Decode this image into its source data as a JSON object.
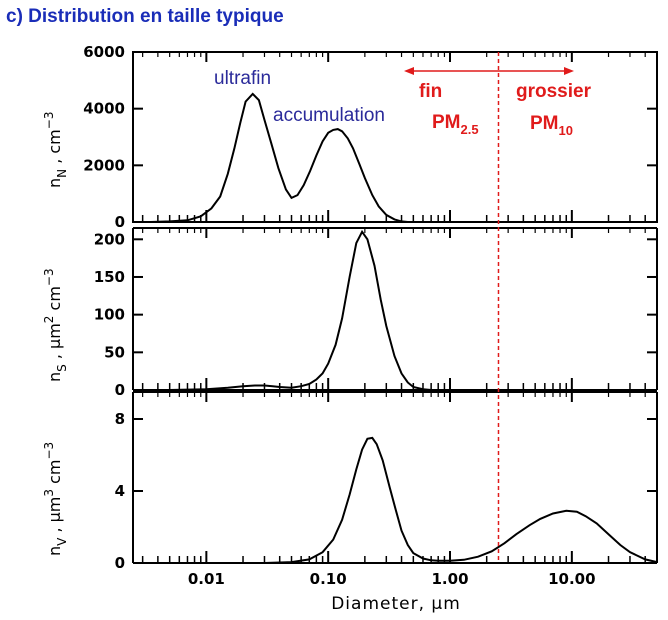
{
  "title": "c) Distribution en taille typique",
  "chart_data": {
    "type": "line",
    "x_scale": "log",
    "xlim": [
      0.0025,
      50
    ],
    "xlabel": "Diameter,  µm",
    "x_ticks": [
      {
        "value": 0.01,
        "label": "0.01"
      },
      {
        "value": 0.1,
        "label": "0.10"
      },
      {
        "value": 1,
        "label": "1.00"
      },
      {
        "value": 10,
        "label": "10.00"
      }
    ],
    "cutoff_diameter": 2.5,
    "panels": [
      {
        "id": "number",
        "ylabel_main": "n",
        "ylabel_sub": "N",
        "ylabel_rest": " ,  cm",
        "ylabel_exp": "−3",
        "ylim": [
          0,
          6000
        ],
        "y_ticks": [
          0,
          2000,
          4000,
          6000
        ],
        "series": [
          {
            "x": [
              0.0035,
              0.005,
              0.007,
              0.009,
              0.011,
              0.013,
              0.015,
              0.017,
              0.019,
              0.021,
              0.024,
              0.027,
              0.03,
              0.034,
              0.039,
              0.045,
              0.05,
              0.056,
              0.063,
              0.071,
              0.08,
              0.09,
              0.1,
              0.11,
              0.12,
              0.13,
              0.145,
              0.16,
              0.18,
              0.2,
              0.23,
              0.26,
              0.3,
              0.35,
              0.4,
              0.45
            ],
            "y": [
              0,
              20,
              60,
              200,
              480,
              900,
              1700,
              2600,
              3500,
              4250,
              4520,
              4300,
              3600,
              2800,
              1900,
              1150,
              850,
              950,
              1300,
              1800,
              2350,
              2850,
              3150,
              3250,
              3280,
              3200,
              2950,
              2600,
              2050,
              1550,
              950,
              550,
              250,
              90,
              20,
              0
            ]
          }
        ]
      },
      {
        "id": "surface",
        "ylabel_main": "n",
        "ylabel_sub": "S",
        "ylabel_rest": " ,  µm",
        "ylabel_exp": "2",
        "ylabel_tail": " cm",
        "ylabel_tail_exp": "−3",
        "ylim": [
          0,
          215
        ],
        "y_ticks": [
          0,
          50,
          100,
          150,
          200
        ],
        "series": [
          {
            "x": [
              0.005,
              0.01,
              0.015,
              0.02,
              0.025,
              0.03,
              0.035,
              0.04,
              0.05,
              0.06,
              0.07,
              0.08,
              0.09,
              0.1,
              0.115,
              0.13,
              0.15,
              0.17,
              0.19,
              0.21,
              0.24,
              0.27,
              0.3,
              0.35,
              0.4,
              0.45,
              0.5,
              0.6,
              0.7
            ],
            "y": [
              0,
              1,
              3,
              5,
              6,
              6,
              5,
              4,
              3,
              5,
              8,
              14,
              22,
              35,
              60,
              95,
              150,
              195,
              210,
              200,
              165,
              120,
              85,
              45,
              22,
              10,
              4,
              1,
              0
            ]
          }
        ]
      },
      {
        "id": "volume",
        "ylabel_main": "n",
        "ylabel_sub": "V",
        "ylabel_rest": " ,  µm",
        "ylabel_exp": "3",
        "ylabel_tail": " cm",
        "ylabel_tail_exp": "−3",
        "ylim": [
          0,
          9.5
        ],
        "y_ticks": [
          0,
          4,
          8
        ],
        "series": [
          {
            "x": [
              0.03,
              0.05,
              0.07,
              0.09,
              0.11,
              0.13,
              0.15,
              0.17,
              0.19,
              0.21,
              0.23,
              0.25,
              0.28,
              0.32,
              0.36,
              0.4,
              0.45,
              0.5,
              0.6,
              0.7,
              0.8,
              1.0,
              1.3,
              1.7,
              2.2,
              2.8,
              3.5,
              4.5,
              5.5,
              7,
              9,
              11,
              13,
              16,
              20,
              25,
              30,
              40,
              50
            ],
            "y": [
              0,
              0.05,
              0.2,
              0.6,
              1.3,
              2.4,
              3.8,
              5.2,
              6.3,
              6.9,
              6.95,
              6.6,
              5.7,
              4.2,
              2.9,
              1.8,
              1.0,
              0.55,
              0.25,
              0.15,
              0.12,
              0.12,
              0.18,
              0.35,
              0.65,
              1.1,
              1.6,
              2.1,
              2.45,
              2.75,
              2.9,
              2.85,
              2.6,
              2.2,
              1.6,
              1.0,
              0.6,
              0.2,
              0.05
            ]
          }
        ]
      }
    ],
    "annotations": {
      "ultrafin": "ultrafin",
      "accumulation": "accumulation",
      "fin": "fin",
      "pm25_main": "PM",
      "pm25_sub": "2.5",
      "grossier": "grossier",
      "pm10_main": "PM",
      "pm10_sub": "10"
    },
    "annotation_colors": {
      "mode": "#2a2a9a",
      "fraction": "#e01b1b",
      "title": "#1a2db8"
    }
  }
}
